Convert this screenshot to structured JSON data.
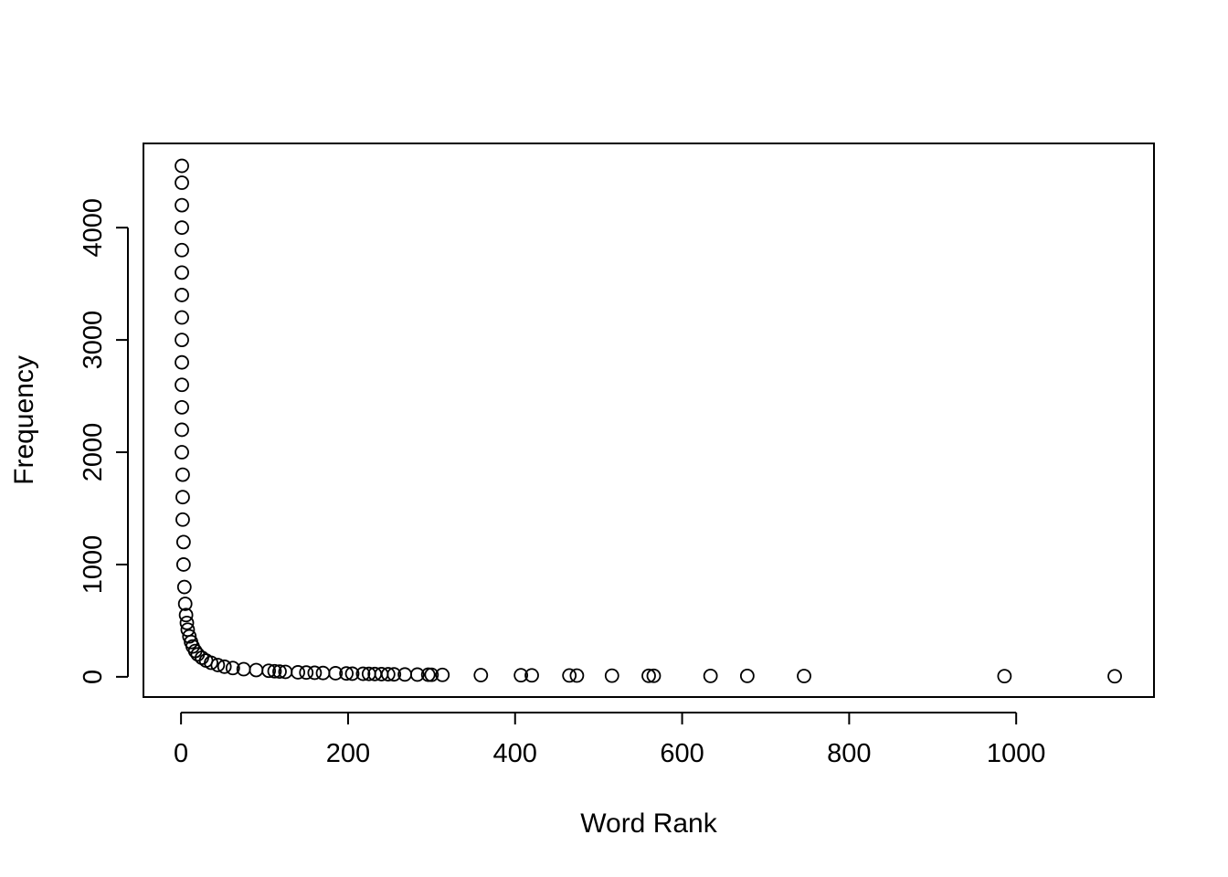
{
  "chart_data": {
    "type": "scatter",
    "title": "",
    "xlabel": "Word Rank",
    "ylabel": "Frequency",
    "xlim": [
      -45,
      1165
    ],
    "ylim": [
      -180,
      4750
    ],
    "xticks": [
      0,
      200,
      400,
      600,
      800,
      1000
    ],
    "yticks": [
      0,
      1000,
      2000,
      3000,
      4000
    ],
    "grid": false,
    "marker": "open-circle",
    "series": [
      {
        "x": [
          1,
          1,
          1,
          1,
          1,
          1,
          1,
          1,
          1,
          1,
          1,
          1,
          1,
          1,
          2,
          2,
          2,
          3,
          3,
          4,
          5,
          6,
          7,
          8,
          10,
          12,
          14,
          17,
          20,
          25,
          30,
          36,
          44,
          52,
          62,
          75,
          90,
          105,
          112,
          118,
          125,
          140,
          150,
          160,
          170,
          185,
          198,
          205,
          218,
          225,
          232,
          240,
          248,
          255,
          268,
          283,
          296,
          300,
          313,
          359,
          407,
          420,
          465,
          474,
          516,
          560,
          566,
          634,
          678,
          746,
          986,
          1118
        ],
        "y": [
          4550,
          4400,
          4200,
          4000,
          3800,
          3600,
          3400,
          3200,
          3000,
          2800,
          2600,
          2400,
          2200,
          2000,
          1800,
          1600,
          1400,
          1200,
          1000,
          800,
          650,
          550,
          480,
          420,
          360,
          310,
          270,
          230,
          200,
          170,
          145,
          125,
          105,
          90,
          78,
          68,
          60,
          54,
          50,
          47,
          44,
          40,
          38,
          36,
          34,
          32,
          30,
          28,
          27,
          26,
          25,
          24,
          23,
          22,
          21,
          20,
          19,
          18,
          17,
          15,
          14,
          13,
          12,
          11,
          10,
          9,
          9,
          8,
          8,
          7,
          6,
          5
        ]
      }
    ]
  }
}
